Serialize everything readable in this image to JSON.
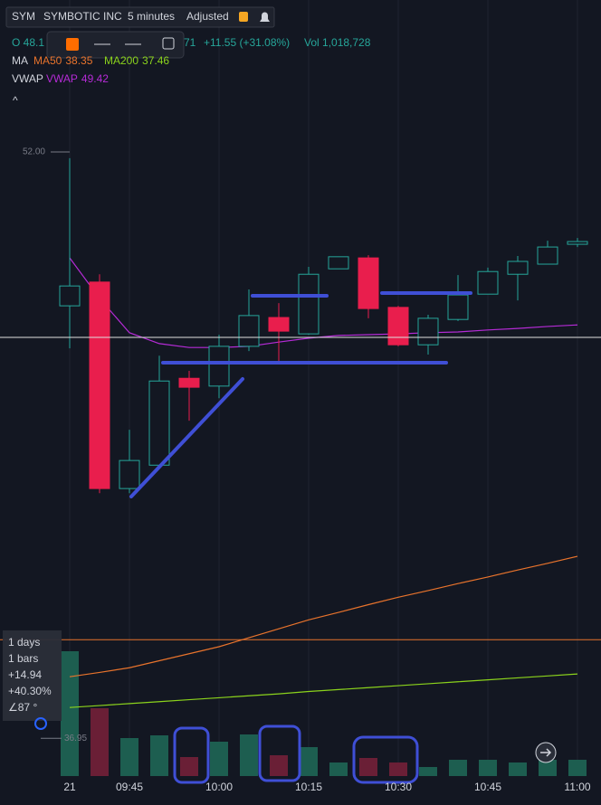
{
  "header": {
    "symbol": "SYM",
    "name": "SYMBOTIC INC",
    "interval": "5 minutes",
    "adjustment": "Adjusted",
    "open_text": "O 48.1",
    "close_fragment": "71",
    "change": "+11.55 (+31.08%)",
    "volume": "Vol 1,018,728",
    "ma_label": "MA",
    "vwap_label": "VWAP"
  },
  "info_box": {
    "lines": [
      "1 days",
      "1 bars",
      "+14.94",
      "+40.30%",
      "∠87 °"
    ]
  },
  "chart_data": {
    "type": "candlestick",
    "x": [
      "09:35",
      "09:40",
      "09:45",
      "09:50",
      "09:55",
      "10:00",
      "10:05",
      "10:10",
      "10:15",
      "10:20",
      "10:25",
      "10:30",
      "10:35",
      "10:40",
      "10:45",
      "10:50",
      "10:55",
      "11:00"
    ],
    "open": [
      48.05,
      48.66,
      43.36,
      43.96,
      46.19,
      45.99,
      47.01,
      47.75,
      47.33,
      49.0,
      49.28,
      48.01,
      47.05,
      47.7,
      48.35,
      48.86,
      49.12,
      49.63
    ],
    "high": [
      51.84,
      48.86,
      44.87,
      46.77,
      46.38,
      47.31,
      48.47,
      48.12,
      49.05,
      49.31,
      49.35,
      48.05,
      47.82,
      48.84,
      49.03,
      49.33,
      49.72,
      49.79
    ],
    "low": [
      46.96,
      43.24,
      43.24,
      43.96,
      45.1,
      45.68,
      46.89,
      46.61,
      47.31,
      49.0,
      47.73,
      47.01,
      46.8,
      47.66,
      48.35,
      48.19,
      49.12,
      49.56
    ],
    "close": [
      48.56,
      43.36,
      44.08,
      46.12,
      45.96,
      47.01,
      47.8,
      47.4,
      48.86,
      49.31,
      47.98,
      47.05,
      47.73,
      48.33,
      48.93,
      49.19,
      49.56,
      49.7
    ],
    "up_color": "#26a69a",
    "down_color": "#e91e4d",
    "ylim": [
      35.98,
      55.9
    ],
    "xticks": [
      {
        "value": "09:35",
        "label": "21"
      },
      "09:45",
      "10:00",
      "10:15",
      "10:30",
      "10:45",
      "11:00"
    ],
    "grid": true,
    "series": [
      {
        "name": "MA50",
        "legend_value": 38.35,
        "color": "#e8732c",
        "values": [
          38.53,
          38.64,
          38.76,
          38.94,
          39.12,
          39.3,
          39.53,
          39.76,
          39.99,
          40.18,
          40.38,
          40.57,
          40.74,
          40.92,
          41.09,
          41.27,
          41.44,
          41.62
        ]
      },
      {
        "name": "MA200",
        "legend_value": 37.46,
        "color": "#8bd31c",
        "values": [
          37.74,
          37.79,
          37.84,
          37.89,
          37.94,
          37.99,
          38.04,
          38.09,
          38.15,
          38.2,
          38.25,
          38.3,
          38.35,
          38.4,
          38.45,
          38.5,
          38.55,
          38.6
        ]
      },
      {
        "name": "VWAP",
        "legend_value": 49.42,
        "color": "#b52bd6",
        "values": [
          49.28,
          48.24,
          47.36,
          47.08,
          46.98,
          46.98,
          47.01,
          47.12,
          47.22,
          47.29,
          47.31,
          47.33,
          47.36,
          47.38,
          47.43,
          47.47,
          47.52,
          47.56
        ]
      }
    ],
    "hline": {
      "value": 39.48,
      "color": "#e8732c"
    },
    "high_marker": {
      "value": 52,
      "label": "52.00"
    },
    "low_marker": {
      "value": 36.95,
      "label": "36.95"
    },
    "volume": {
      "lim": [
        0,
        1415700
      ],
      "up_color": "#1d5e50",
      "down_color": "#6a1f36",
      "values": [
        227700,
        123750,
        69300,
        74250,
        34650,
        62700,
        75900,
        37950,
        52800,
        24750,
        33000,
        24750,
        16500,
        29700,
        29700,
        24750,
        29700,
        29700
      ]
    }
  }
}
